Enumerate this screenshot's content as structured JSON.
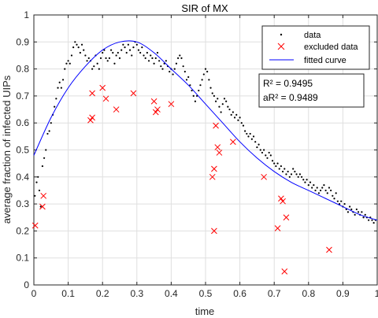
{
  "chart_data": {
    "type": "scatter",
    "title": "SIR of MX",
    "xlabel": "time",
    "ylabel": "average fraction of infected UIPs",
    "xlim": [
      0,
      1
    ],
    "ylim": [
      0,
      1
    ],
    "xticks": [
      "0",
      "0.1",
      "0.2",
      "0.3",
      "0.4",
      "0.5",
      "0.6",
      "0.7",
      "0.8",
      "0.9",
      "1"
    ],
    "yticks": [
      "0",
      "0.1",
      "0.2",
      "0.3",
      "0.4",
      "0.5",
      "0.6",
      "0.7",
      "0.8",
      "0.9",
      "1"
    ],
    "grid": true,
    "legend_position": "top-right",
    "legend": {
      "data": "data",
      "excluded": "excluded data",
      "fitted": "fitted curve"
    },
    "stats": {
      "r2": "R² = 0.9495",
      "ar2": "aR² = 0.9489"
    },
    "colors": {
      "data": "#000000",
      "excluded": "#ff0000",
      "fitted": "#0000ff",
      "grid": "#dfdfdf"
    },
    "series": [
      {
        "name": "data",
        "points": [
          [
            0.003,
            0.33
          ],
          [
            0.008,
            0.38
          ],
          [
            0.012,
            0.4
          ],
          [
            0.016,
            0.35
          ],
          [
            0.02,
            0.29
          ],
          [
            0.025,
            0.44
          ],
          [
            0.03,
            0.47
          ],
          [
            0.035,
            0.5
          ],
          [
            0.04,
            0.56
          ],
          [
            0.045,
            0.57
          ],
          [
            0.05,
            0.6
          ],
          [
            0.055,
            0.63
          ],
          [
            0.06,
            0.66
          ],
          [
            0.065,
            0.69
          ],
          [
            0.07,
            0.73
          ],
          [
            0.075,
            0.75
          ],
          [
            0.08,
            0.73
          ],
          [
            0.085,
            0.76
          ],
          [
            0.09,
            0.8
          ],
          [
            0.095,
            0.82
          ],
          [
            0.1,
            0.83
          ],
          [
            0.105,
            0.82
          ],
          [
            0.11,
            0.85
          ],
          [
            0.115,
            0.88
          ],
          [
            0.12,
            0.9
          ],
          [
            0.125,
            0.89
          ],
          [
            0.13,
            0.88
          ],
          [
            0.135,
            0.86
          ],
          [
            0.14,
            0.89
          ],
          [
            0.145,
            0.87
          ],
          [
            0.15,
            0.85
          ],
          [
            0.155,
            0.83
          ],
          [
            0.16,
            0.84
          ],
          [
            0.165,
            0.83
          ],
          [
            0.17,
            0.8
          ],
          [
            0.175,
            0.81
          ],
          [
            0.18,
            0.85
          ],
          [
            0.185,
            0.82
          ],
          [
            0.19,
            0.8
          ],
          [
            0.195,
            0.84
          ],
          [
            0.2,
            0.86
          ],
          [
            0.205,
            0.87
          ],
          [
            0.21,
            0.84
          ],
          [
            0.215,
            0.83
          ],
          [
            0.22,
            0.84
          ],
          [
            0.225,
            0.87
          ],
          [
            0.23,
            0.86
          ],
          [
            0.235,
            0.82
          ],
          [
            0.24,
            0.85
          ],
          [
            0.245,
            0.86
          ],
          [
            0.25,
            0.84
          ],
          [
            0.255,
            0.87
          ],
          [
            0.26,
            0.89
          ],
          [
            0.265,
            0.88
          ],
          [
            0.27,
            0.86
          ],
          [
            0.275,
            0.89
          ],
          [
            0.28,
            0.87
          ],
          [
            0.285,
            0.85
          ],
          [
            0.29,
            0.88
          ],
          [
            0.295,
            0.9
          ],
          [
            0.3,
            0.89
          ],
          [
            0.305,
            0.87
          ],
          [
            0.31,
            0.86
          ],
          [
            0.315,
            0.88
          ],
          [
            0.32,
            0.85
          ],
          [
            0.325,
            0.84
          ],
          [
            0.33,
            0.86
          ],
          [
            0.335,
            0.83
          ],
          [
            0.34,
            0.85
          ],
          [
            0.345,
            0.84
          ],
          [
            0.35,
            0.82
          ],
          [
            0.355,
            0.84
          ],
          [
            0.36,
            0.86
          ],
          [
            0.365,
            0.83
          ],
          [
            0.37,
            0.81
          ],
          [
            0.375,
            0.8
          ],
          [
            0.38,
            0.82
          ],
          [
            0.385,
            0.83
          ],
          [
            0.39,
            0.81
          ],
          [
            0.395,
            0.79
          ],
          [
            0.4,
            0.8
          ],
          [
            0.405,
            0.78
          ],
          [
            0.41,
            0.8
          ],
          [
            0.415,
            0.82
          ],
          [
            0.42,
            0.84
          ],
          [
            0.425,
            0.85
          ],
          [
            0.43,
            0.84
          ],
          [
            0.435,
            0.81
          ],
          [
            0.44,
            0.79
          ],
          [
            0.445,
            0.76
          ],
          [
            0.45,
            0.77
          ],
          [
            0.455,
            0.74
          ],
          [
            0.46,
            0.72
          ],
          [
            0.465,
            0.7
          ],
          [
            0.47,
            0.68
          ],
          [
            0.475,
            0.7
          ],
          [
            0.48,
            0.72
          ],
          [
            0.485,
            0.74
          ],
          [
            0.49,
            0.76
          ],
          [
            0.495,
            0.78
          ],
          [
            0.5,
            0.8
          ],
          [
            0.505,
            0.79
          ],
          [
            0.51,
            0.76
          ],
          [
            0.515,
            0.73
          ],
          [
            0.52,
            0.71
          ],
          [
            0.525,
            0.7
          ],
          [
            0.53,
            0.68
          ],
          [
            0.535,
            0.69
          ],
          [
            0.54,
            0.66
          ],
          [
            0.545,
            0.64
          ],
          [
            0.55,
            0.67
          ],
          [
            0.555,
            0.69
          ],
          [
            0.56,
            0.68
          ],
          [
            0.565,
            0.66
          ],
          [
            0.57,
            0.65
          ],
          [
            0.575,
            0.63
          ],
          [
            0.58,
            0.64
          ],
          [
            0.585,
            0.62
          ],
          [
            0.59,
            0.63
          ],
          [
            0.595,
            0.61
          ],
          [
            0.6,
            0.62
          ],
          [
            0.605,
            0.6
          ],
          [
            0.61,
            0.59
          ],
          [
            0.615,
            0.57
          ],
          [
            0.62,
            0.56
          ],
          [
            0.625,
            0.55
          ],
          [
            0.63,
            0.56
          ],
          [
            0.635,
            0.54
          ],
          [
            0.64,
            0.55
          ],
          [
            0.645,
            0.53
          ],
          [
            0.65,
            0.51
          ],
          [
            0.655,
            0.52
          ],
          [
            0.66,
            0.5
          ],
          [
            0.665,
            0.49
          ],
          [
            0.67,
            0.5
          ],
          [
            0.675,
            0.48
          ],
          [
            0.68,
            0.47
          ],
          [
            0.685,
            0.49
          ],
          [
            0.69,
            0.48
          ],
          [
            0.695,
            0.46
          ],
          [
            0.7,
            0.45
          ],
          [
            0.705,
            0.44
          ],
          [
            0.71,
            0.45
          ],
          [
            0.715,
            0.43
          ],
          [
            0.72,
            0.44
          ],
          [
            0.725,
            0.42
          ],
          [
            0.73,
            0.43
          ],
          [
            0.735,
            0.41
          ],
          [
            0.74,
            0.42
          ],
          [
            0.745,
            0.4
          ],
          [
            0.75,
            0.41
          ],
          [
            0.755,
            0.43
          ],
          [
            0.76,
            0.42
          ],
          [
            0.765,
            0.41
          ],
          [
            0.77,
            0.4
          ],
          [
            0.775,
            0.41
          ],
          [
            0.78,
            0.4
          ],
          [
            0.785,
            0.39
          ],
          [
            0.79,
            0.38
          ],
          [
            0.795,
            0.39
          ],
          [
            0.8,
            0.37
          ],
          [
            0.805,
            0.38
          ],
          [
            0.81,
            0.36
          ],
          [
            0.815,
            0.37
          ],
          [
            0.82,
            0.35
          ],
          [
            0.825,
            0.36
          ],
          [
            0.83,
            0.34
          ],
          [
            0.835,
            0.35
          ],
          [
            0.84,
            0.36
          ],
          [
            0.845,
            0.37
          ],
          [
            0.85,
            0.35
          ],
          [
            0.855,
            0.34
          ],
          [
            0.86,
            0.36
          ],
          [
            0.865,
            0.35
          ],
          [
            0.87,
            0.33
          ],
          [
            0.875,
            0.32
          ],
          [
            0.88,
            0.34
          ],
          [
            0.885,
            0.31
          ],
          [
            0.89,
            0.3
          ],
          [
            0.895,
            0.31
          ],
          [
            0.9,
            0.29
          ],
          [
            0.905,
            0.3
          ],
          [
            0.91,
            0.28
          ],
          [
            0.915,
            0.27
          ],
          [
            0.92,
            0.29
          ],
          [
            0.925,
            0.28
          ],
          [
            0.93,
            0.27
          ],
          [
            0.935,
            0.26
          ],
          [
            0.94,
            0.28
          ],
          [
            0.945,
            0.27
          ],
          [
            0.95,
            0.26
          ],
          [
            0.955,
            0.27
          ],
          [
            0.96,
            0.25
          ],
          [
            0.965,
            0.26
          ],
          [
            0.97,
            0.25
          ],
          [
            0.975,
            0.24
          ],
          [
            0.98,
            0.25
          ],
          [
            0.985,
            0.24
          ],
          [
            0.99,
            0.23
          ],
          [
            0.995,
            0.24
          ]
        ]
      },
      {
        "name": "excluded data",
        "points": [
          [
            0.004,
            0.22
          ],
          [
            0.028,
            0.33
          ],
          [
            0.025,
            0.29
          ],
          [
            0.17,
            0.71
          ],
          [
            0.17,
            0.62
          ],
          [
            0.165,
            0.61
          ],
          [
            0.2,
            0.73
          ],
          [
            0.21,
            0.69
          ],
          [
            0.24,
            0.65
          ],
          [
            0.29,
            0.71
          ],
          [
            0.35,
            0.68
          ],
          [
            0.355,
            0.64
          ],
          [
            0.36,
            0.65
          ],
          [
            0.4,
            0.67
          ],
          [
            0.52,
            0.4
          ],
          [
            0.525,
            0.43
          ],
          [
            0.53,
            0.59
          ],
          [
            0.535,
            0.51
          ],
          [
            0.54,
            0.49
          ],
          [
            0.525,
            0.2
          ],
          [
            0.58,
            0.53
          ],
          [
            0.67,
            0.4
          ],
          [
            0.71,
            0.21
          ],
          [
            0.72,
            0.32
          ],
          [
            0.725,
            0.31
          ],
          [
            0.73,
            0.05
          ],
          [
            0.735,
            0.25
          ],
          [
            0.86,
            0.13
          ]
        ]
      }
    ],
    "fitted_curve": {
      "name": "fitted curve",
      "x": [
        0,
        0.05,
        0.1,
        0.15,
        0.2,
        0.25,
        0.3,
        0.35,
        0.4,
        0.45,
        0.5,
        0.55,
        0.6,
        0.65,
        0.7,
        0.75,
        0.8,
        0.85,
        0.9,
        0.95,
        1.0
      ],
      "y": [
        0.48,
        0.62,
        0.73,
        0.81,
        0.87,
        0.9,
        0.9,
        0.86,
        0.8,
        0.74,
        0.67,
        0.6,
        0.53,
        0.47,
        0.42,
        0.38,
        0.35,
        0.32,
        0.29,
        0.26,
        0.24
      ]
    }
  }
}
